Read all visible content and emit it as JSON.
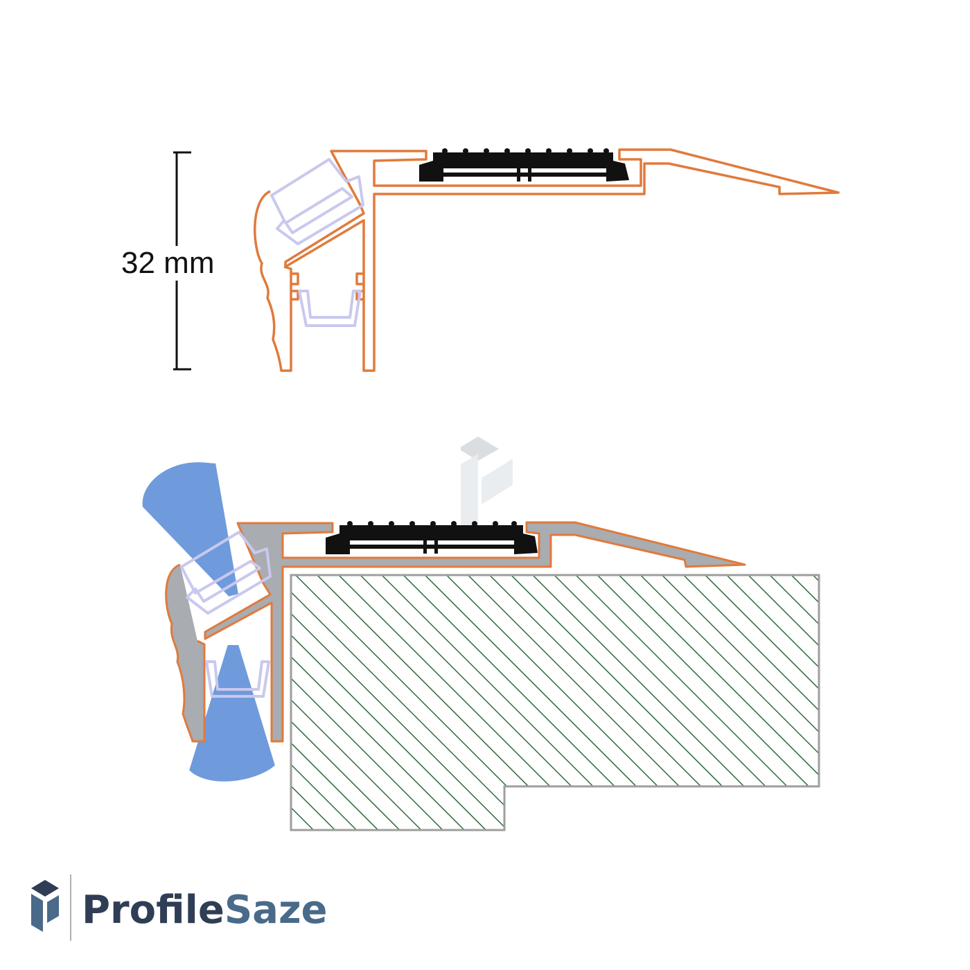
{
  "dimension": {
    "label": "32 mm"
  },
  "brand": {
    "name_part1": "Profile",
    "name_part2": "Saze",
    "logo_icon": "profilesaze-logo-icon"
  },
  "colors": {
    "profile_outline": "#e07a3c",
    "insert_outline": "#c9c8ee",
    "tread_black": "#111111",
    "aluminium": "#a9acb0",
    "light_beam": "#6f9bdc",
    "hatch": "#2e6b3c",
    "brand_dark": "#2f3d55",
    "brand_light": "#4a6a8a"
  }
}
